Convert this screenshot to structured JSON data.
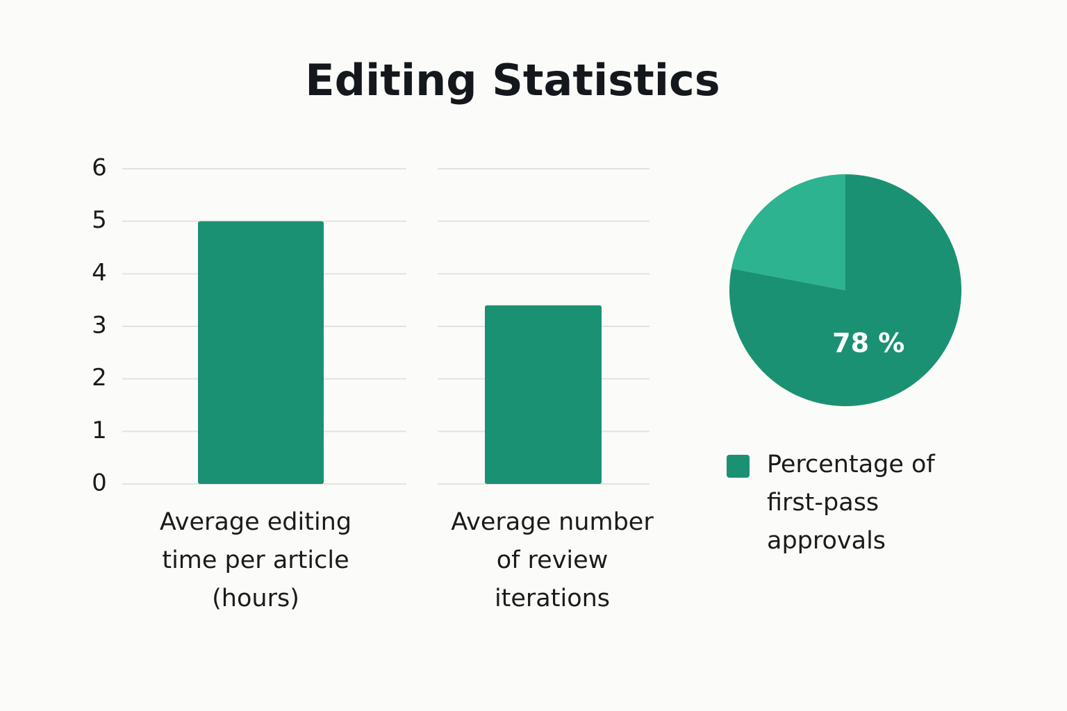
{
  "title": "Editing Statistics",
  "chart_data": [
    {
      "type": "bar",
      "categories": [
        "Average editing time per article (hours)",
        "Average number of review iterations"
      ],
      "values": [
        5.0,
        3.4
      ],
      "color": "#1a9172",
      "ylim": [
        0,
        6
      ],
      "yticks": [
        0,
        1,
        2,
        3,
        4,
        5,
        6
      ],
      "grid": true
    },
    {
      "type": "pie",
      "categories": [
        "Percentage of first-pass approvals",
        null
      ],
      "values": [
        78,
        22
      ],
      "value_labels": [
        "78 %",
        null
      ],
      "colors": [
        "#1a9172",
        "#2db38f"
      ],
      "legend": "bottom"
    }
  ]
}
